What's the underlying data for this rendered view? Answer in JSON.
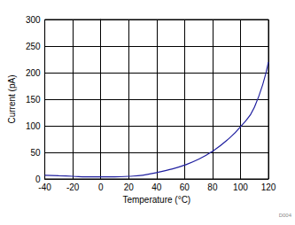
{
  "chart_data": {
    "type": "line",
    "x_label": "Temperature (°C)",
    "y_label": "Current (pA)",
    "annotation": "D004",
    "x": [
      -40,
      -30,
      -20,
      -10,
      0,
      10,
      20,
      30,
      40,
      50,
      60,
      70,
      80,
      90,
      100,
      110,
      120
    ],
    "values": [
      7,
      6,
      5,
      4,
      4,
      4,
      5,
      7,
      12,
      18,
      26,
      37,
      52,
      72,
      98,
      135,
      220
    ],
    "color": "#2020a0",
    "xlim": [
      -40,
      120
    ],
    "xticks": [
      -40,
      -20,
      0,
      20,
      40,
      60,
      80,
      100,
      120
    ],
    "ylim": [
      0,
      300
    ],
    "yticks": [
      0,
      50,
      100,
      150,
      200,
      250,
      300
    ],
    "grid": true
  }
}
